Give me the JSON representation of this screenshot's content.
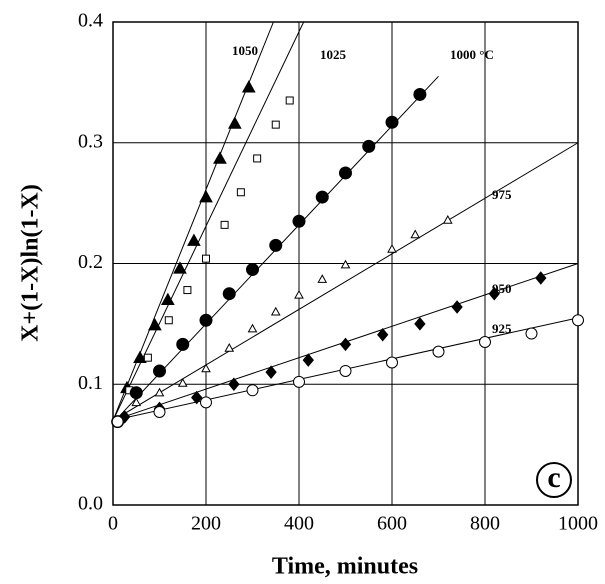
{
  "chart_data": {
    "type": "scatter",
    "xlabel": "Time, minutes",
    "ylabel": "X+(1-X)ln(1-X)",
    "panel_label": "c",
    "xlim": [
      0,
      1000
    ],
    "ylim": [
      0,
      0.4
    ],
    "xticks": [
      0,
      200,
      400,
      600,
      800,
      1000
    ],
    "yticks": [
      {
        "value": 0,
        "label": "0.0"
      },
      0.1,
      0.2,
      0.3,
      0.4
    ],
    "grid": true,
    "color": "#000000",
    "series": [
      {
        "name": "1050",
        "marker": "triangle-filled",
        "x": [
          30,
          58,
          90,
          118,
          144,
          174,
          200,
          230,
          262,
          292
        ],
        "values": [
          0.097,
          0.122,
          0.149,
          0.17,
          0.196,
          0.219,
          0.255,
          0.287,
          0.316,
          0.346
        ],
        "fit": {
          "x": [
            0,
            345
          ],
          "values": [
            0.07,
            0.4
          ]
        }
      },
      {
        "name": "1025",
        "marker": "square-open",
        "x": [
          35,
          75,
          120,
          160,
          200,
          240,
          275,
          310,
          350,
          380
        ],
        "values": [
          0.095,
          0.122,
          0.153,
          0.178,
          0.204,
          0.232,
          0.259,
          0.287,
          0.315,
          0.335
        ],
        "fit": {
          "x": [
            0,
            410
          ],
          "values": [
            0.07,
            0.4
          ]
        }
      },
      {
        "name": "1000 °C",
        "marker": "circle-filled",
        "x": [
          10,
          50,
          100,
          150,
          200,
          250,
          300,
          350,
          400,
          450,
          500,
          550,
          600,
          660
        ],
        "values": [
          0.069,
          0.093,
          0.111,
          0.133,
          0.153,
          0.175,
          0.195,
          0.215,
          0.235,
          0.255,
          0.275,
          0.297,
          0.317,
          0.34
        ],
        "fit": {
          "x": [
            0,
            700
          ],
          "values": [
            0.068,
            0.355
          ]
        }
      },
      {
        "name": "975",
        "marker": "triangle-open",
        "x": [
          50,
          100,
          150,
          200,
          250,
          300,
          350,
          400,
          450,
          500,
          600,
          650,
          720
        ],
        "values": [
          0.085,
          0.093,
          0.101,
          0.113,
          0.13,
          0.146,
          0.16,
          0.174,
          0.187,
          0.199,
          0.212,
          0.224,
          0.236
        ],
        "fit": {
          "x": [
            0,
            1000
          ],
          "values": [
            0.07,
            0.3
          ]
        }
      },
      {
        "name": "950",
        "marker": "diamond-filled",
        "x": [
          25,
          100,
          180,
          260,
          340,
          420,
          500,
          580,
          660,
          740,
          820,
          920
        ],
        "values": [
          0.073,
          0.08,
          0.089,
          0.1,
          0.11,
          0.12,
          0.133,
          0.141,
          0.15,
          0.164,
          0.175,
          0.188
        ],
        "fit": {
          "x": [
            0,
            1000
          ],
          "values": [
            0.07,
            0.2
          ]
        }
      },
      {
        "name": "925",
        "marker": "circle-open",
        "x": [
          10,
          100,
          200,
          300,
          400,
          500,
          600,
          700,
          800,
          900,
          1000
        ],
        "values": [
          0.069,
          0.077,
          0.085,
          0.095,
          0.102,
          0.111,
          0.118,
          0.127,
          0.135,
          0.142,
          0.153
        ],
        "fit": {
          "x": [
            0,
            1000
          ],
          "values": [
            0.07,
            0.155
          ]
        }
      }
    ]
  }
}
